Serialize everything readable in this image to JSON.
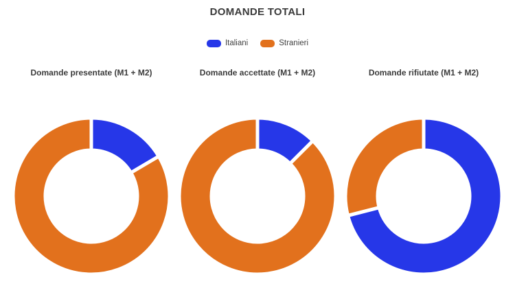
{
  "header": {
    "title": "DOMANDE TOTALI"
  },
  "legend": {
    "items": [
      {
        "label": "Italiani",
        "color": "#2637e8"
      },
      {
        "label": "Stranieri",
        "color": "#e2711d"
      }
    ]
  },
  "colors": {
    "italiani": "#2637e8",
    "stranieri": "#e2711d",
    "slice_border": "#ffffff",
    "title_text": "#3a3a3a",
    "legend_text": "#3f3f3f",
    "background": "#ffffff"
  },
  "chart_data": [
    {
      "type": "pie",
      "title": "Domande presentate (M1 + M2)",
      "labels": [
        "Italiani",
        "Stranieri"
      ],
      "values_pct": [
        16.5,
        83.5
      ],
      "colors": [
        "#2637e8",
        "#e2711d"
      ],
      "start_angle_deg": 0,
      "direction": "clockwise",
      "cutout_pct": 59,
      "legend_position": "top",
      "data_labels_shown": false
    },
    {
      "type": "pie",
      "title": "Domande accettate (M1 + M2)",
      "labels": [
        "Italiani",
        "Stranieri"
      ],
      "values_pct": [
        12.5,
        87.5
      ],
      "colors": [
        "#2637e8",
        "#e2711d"
      ],
      "start_angle_deg": 0,
      "direction": "clockwise",
      "cutout_pct": 59,
      "legend_position": "top",
      "data_labels_shown": false
    },
    {
      "type": "pie",
      "title": "Domande rifiutate (M1 + M2)",
      "labels": [
        "Italiani",
        "Stranieri"
      ],
      "values_pct": [
        71,
        29
      ],
      "colors": [
        "#2637e8",
        "#e2711d"
      ],
      "start_angle_deg": 0,
      "direction": "clockwise",
      "cutout_pct": 59,
      "legend_position": "top",
      "data_labels_shown": false
    }
  ]
}
